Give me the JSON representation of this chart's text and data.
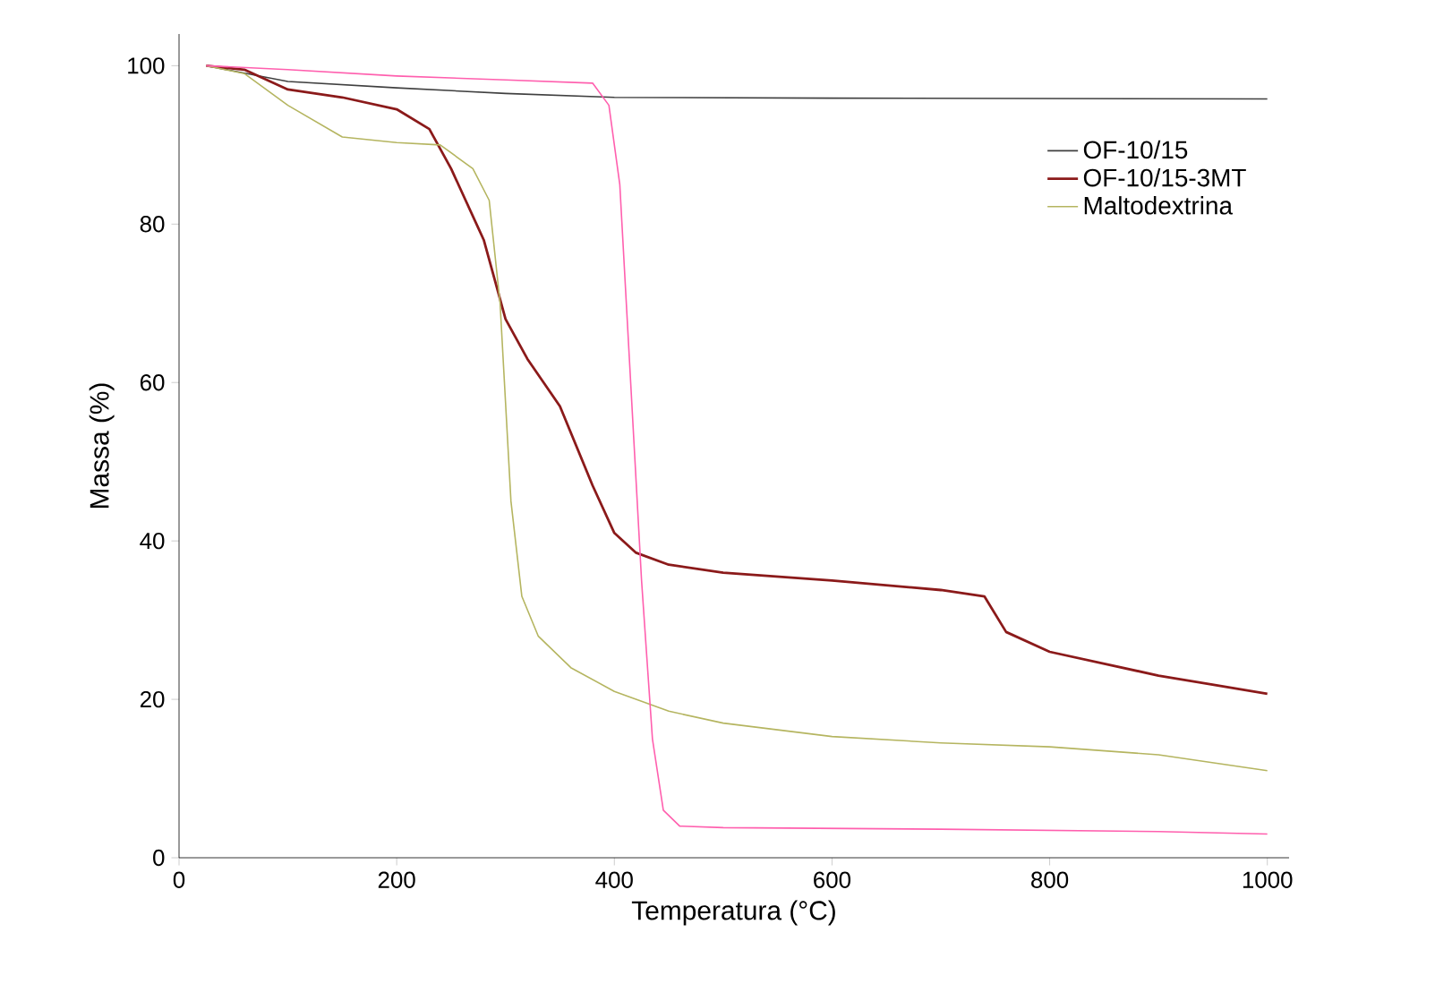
{
  "chart_data": {
    "type": "line",
    "xlabel": "Temperatura (°C)",
    "ylabel": "Massa (%)",
    "xlim": [
      0,
      1020
    ],
    "ylim": [
      0,
      104
    ],
    "xticks": [
      0,
      200,
      400,
      600,
      800,
      1000
    ],
    "yticks": [
      0,
      20,
      40,
      60,
      80,
      100
    ],
    "grid": false,
    "legend": "top right",
    "marker": "none",
    "line_style": "solid",
    "series": [
      {
        "name": "OF-10/15",
        "color": "#404040",
        "x": [
          25,
          100,
          200,
          300,
          400,
          600,
          1000
        ],
        "values": [
          100,
          98,
          97.2,
          96.5,
          96,
          95.9,
          95.8
        ]
      },
      {
        "name": "OF-10/15-3MT",
        "color": "#8b1a1a",
        "x": [
          25,
          60,
          100,
          150,
          200,
          230,
          250,
          280,
          300,
          320,
          350,
          380,
          400,
          420,
          450,
          500,
          600,
          700,
          740,
          760,
          800,
          900,
          1000
        ],
        "values": [
          100,
          99.5,
          97,
          96,
          94.5,
          92,
          87,
          78,
          68,
          63,
          57,
          47,
          41,
          38.5,
          37,
          36,
          35,
          33.8,
          33,
          28.5,
          26,
          23,
          20.7
        ]
      },
      {
        "name": "Maltodextrina",
        "color": "#b5b560",
        "x": [
          25,
          60,
          100,
          150,
          200,
          240,
          270,
          285,
          295,
          305,
          315,
          330,
          360,
          400,
          450,
          500,
          600,
          700,
          800,
          900,
          1000
        ],
        "values": [
          100,
          99,
          95,
          91,
          90.3,
          90,
          87,
          83,
          70,
          45,
          33,
          28,
          24,
          21,
          18.5,
          17,
          15.3,
          14.5,
          14,
          13,
          11
        ]
      },
      {
        "color": "#ff5fae",
        "x": [
          25,
          100,
          200,
          300,
          380,
          395,
          405,
          415,
          425,
          435,
          445,
          460,
          500,
          700,
          900,
          1000
        ],
        "values": [
          100,
          99.5,
          98.7,
          98.2,
          97.8,
          95,
          85,
          60,
          35,
          15,
          6,
          4,
          3.8,
          3.6,
          3.3,
          3
        ]
      }
    ]
  }
}
